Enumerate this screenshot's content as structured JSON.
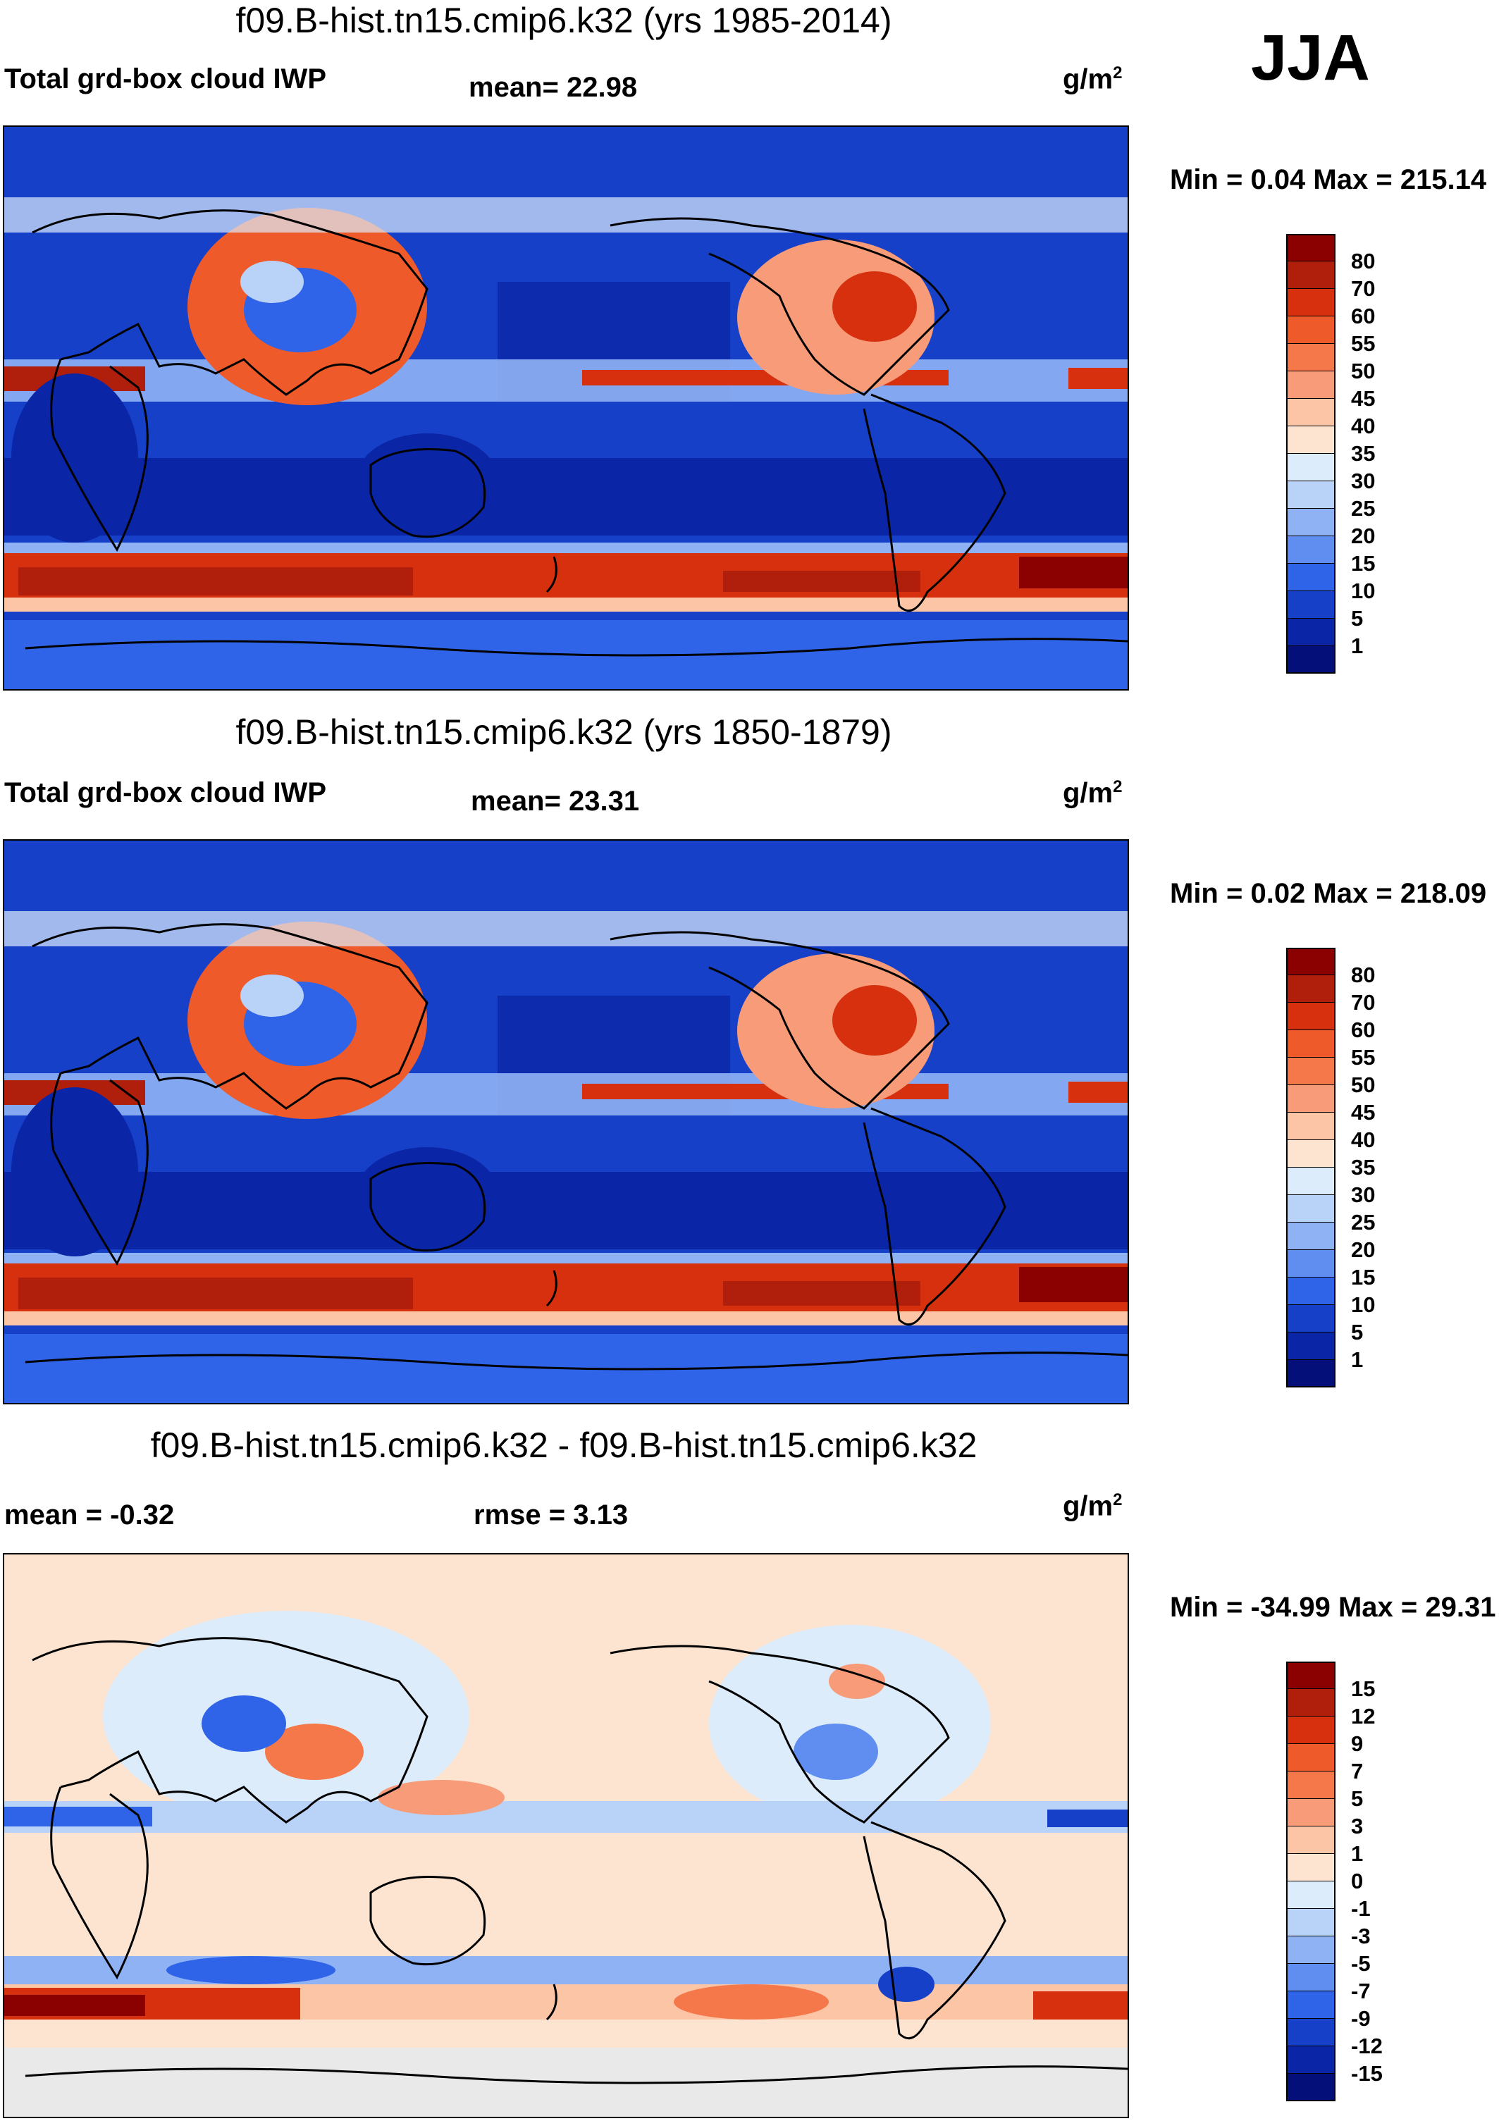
{
  "season": "JJA",
  "colors": {
    "ocean_deep": "#0a1f9c",
    "ocean": "#2146d6",
    "mid": "#8fb2f5",
    "neutral": "#fde4d0",
    "warm": "#f07a4a",
    "hot": "#a01010"
  },
  "panels": [
    {
      "title": "f09.B-hist.tn15.cmip6.k32 (yrs 1985-2014)",
      "left_label": "Total grd-box cloud IWP",
      "center_label": "mean=  22.98",
      "units_base": "g/m",
      "units_exp": "2",
      "minmax": "Min =   0.04 Max = 215.14",
      "colorbar": {
        "labels": [
          "80",
          "70",
          "60",
          "55",
          "50",
          "45",
          "40",
          "35",
          "30",
          "25",
          "20",
          "15",
          "10",
          "5",
          "1"
        ],
        "colors": [
          "#8b0000",
          "#b01e0c",
          "#d6300f",
          "#ee5a2a",
          "#f4784a",
          "#f79b78",
          "#fbc5a6",
          "#fde4d0",
          "#ddecfb",
          "#b9d2f8",
          "#8fb2f5",
          "#5f8df0",
          "#2f63e8",
          "#1640c8",
          "#0a25a6",
          "#050f7a"
        ]
      }
    },
    {
      "title": "f09.B-hist.tn15.cmip6.k32 (yrs 1850-1879)",
      "left_label": "Total grd-box cloud IWP",
      "center_label": "mean=  23.31",
      "units_base": "g/m",
      "units_exp": "2",
      "minmax": "Min =   0.02 Max = 218.09",
      "colorbar": {
        "labels": [
          "80",
          "70",
          "60",
          "55",
          "50",
          "45",
          "40",
          "35",
          "30",
          "25",
          "20",
          "15",
          "10",
          "5",
          "1"
        ],
        "colors": [
          "#8b0000",
          "#b01e0c",
          "#d6300f",
          "#ee5a2a",
          "#f4784a",
          "#f79b78",
          "#fbc5a6",
          "#fde4d0",
          "#ddecfb",
          "#b9d2f8",
          "#8fb2f5",
          "#5f8df0",
          "#2f63e8",
          "#1640c8",
          "#0a25a6",
          "#050f7a"
        ]
      }
    },
    {
      "title": "f09.B-hist.tn15.cmip6.k32 - f09.B-hist.tn15.cmip6.k32",
      "left_label": "mean =  -0.32",
      "center_label": "rmse =    3.13",
      "units_base": "g/m",
      "units_exp": "2",
      "minmax": "Min = -34.99 Max =  29.31",
      "colorbar": {
        "labels": [
          "15",
          "12",
          "9",
          "7",
          "5",
          "3",
          "1",
          "0",
          "-1",
          "-3",
          "-5",
          "-7",
          "-9",
          "-12",
          "-15"
        ],
        "colors": [
          "#8b0000",
          "#b01e0c",
          "#d6300f",
          "#ee5a2a",
          "#f4784a",
          "#f79b78",
          "#fbc5a6",
          "#fde4d0",
          "#ddecfb",
          "#b9d2f8",
          "#8fb2f5",
          "#5f8df0",
          "#2f63e8",
          "#1640c8",
          "#0a25a6",
          "#050f7a"
        ]
      }
    }
  ]
}
